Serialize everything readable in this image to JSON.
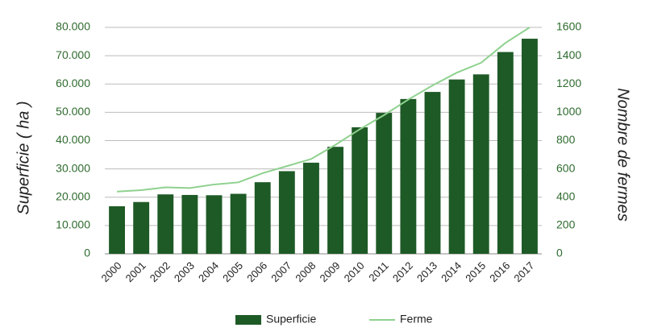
{
  "chart_data": {
    "type": "bar",
    "y_label": "Superficie ( ha )",
    "y2_label": "Nombre de fermes",
    "categories": [
      "2000",
      "2001",
      "2002",
      "2003",
      "2004",
      "2005",
      "2006",
      "2007",
      "2008",
      "2009",
      "2010",
      "2011",
      "2012",
      "2013",
      "2014",
      "2015",
      "2016",
      "2017"
    ],
    "series": [
      {
        "name": "Superficie",
        "color": "#1e5a26",
        "axis": "y",
        "values": [
          16800,
          18300,
          21000,
          20800,
          20700,
          21200,
          25300,
          29200,
          32200,
          37800,
          44700,
          49800,
          54700,
          57200,
          61600,
          63400,
          71300,
          76000
        ]
      },
      {
        "name": "Ferme",
        "type": "line",
        "color": "#8fd18f",
        "axis": "y2",
        "values": [
          440,
          450,
          470,
          465,
          490,
          505,
          570,
          620,
          670,
          770,
          880,
          980,
          1090,
          1190,
          1280,
          1350,
          1490,
          1600
        ]
      }
    ],
    "ylim": [
      0,
      80000
    ],
    "yticks": [
      0,
      {
        "value": 10000,
        "label": "10.000"
      },
      {
        "value": 20000,
        "label": "20.000"
      },
      {
        "value": 30000,
        "label": "30.000"
      },
      {
        "value": 40000,
        "label": "40.000"
      },
      {
        "value": 50000,
        "label": "50.000"
      },
      {
        "value": 60000,
        "label": "60.000"
      },
      {
        "value": 70000,
        "label": "70.000"
      },
      {
        "value": 80000,
        "label": "80.000"
      }
    ],
    "y2lim": [
      0,
      1600
    ],
    "y2ticks": [
      0,
      200,
      400,
      600,
      800,
      1000,
      1200,
      1400,
      1600
    ],
    "grid": true,
    "legend": "bottom"
  }
}
